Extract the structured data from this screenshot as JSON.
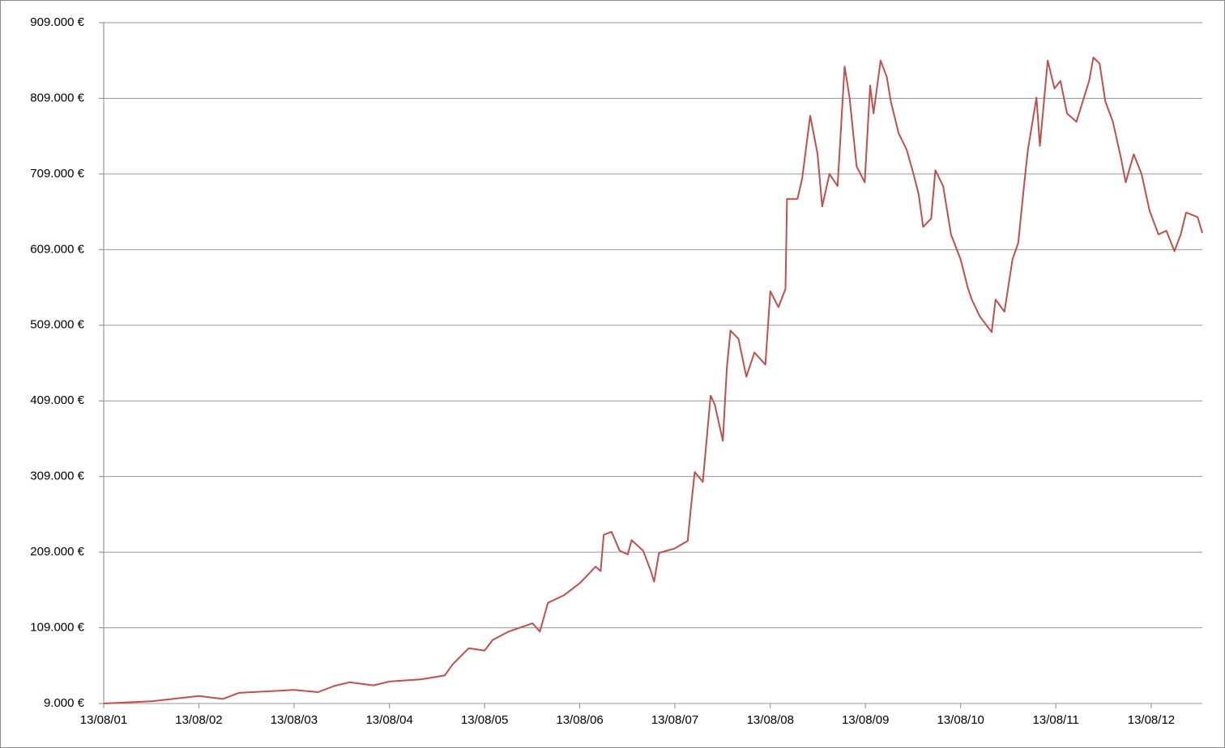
{
  "chart_data": {
    "type": "line",
    "x": [
      "2001-08-13",
      "2002-02-13",
      "2002-08-13",
      "2002-11-13",
      "2003-01-13",
      "2003-08-13",
      "2003-11-13",
      "2004-01-13",
      "2004-03-13",
      "2004-06-13",
      "2004-08-13",
      "2004-12-13",
      "2005-03-13",
      "2005-04-13",
      "2005-06-13",
      "2005-08-13",
      "2005-09-13",
      "2005-11-13",
      "2006-02-13",
      "2006-03-13",
      "2006-04-13",
      "2006-06-13",
      "2006-08-13",
      "2006-10-13",
      "2006-11-01",
      "2006-11-13",
      "2006-12-13",
      "2007-01-13",
      "2007-02-13",
      "2007-02-28",
      "2007-04-13",
      "2007-05-13",
      "2007-05-25",
      "2007-06-13",
      "2007-08-13",
      "2007-10-01",
      "2007-10-13",
      "2007-10-28",
      "2007-11-28",
      "2007-12-28",
      "2008-01-13",
      "2008-02-13",
      "2008-02-28",
      "2008-03-13",
      "2008-04-13",
      "2008-05-13",
      "2008-06-13",
      "2008-07-25",
      "2008-08-13",
      "2008-09-13",
      "2008-10-10",
      "2008-10-16",
      "2008-11-25",
      "2008-12-13",
      "2009-01-13",
      "2009-02-10",
      "2009-02-28",
      "2009-03-28",
      "2009-04-28",
      "2009-05-25",
      "2009-06-13",
      "2009-07-10",
      "2009-08-10",
      "2009-08-31",
      "2009-09-13",
      "2009-10-10",
      "2009-11-03",
      "2009-11-18",
      "2009-12-18",
      "2010-01-18",
      "2010-02-13",
      "2010-03-05",
      "2010-03-22",
      "2010-04-22",
      "2010-05-08",
      "2010-06-07",
      "2010-07-07",
      "2010-08-13",
      "2010-09-10",
      "2010-09-25",
      "2010-10-25",
      "2010-12-10",
      "2010-12-25",
      "2011-01-28",
      "2011-02-28",
      "2011-03-22",
      "2011-04-13",
      "2011-04-28",
      "2011-05-31",
      "2011-06-13",
      "2011-07-13",
      "2011-08-08",
      "2011-08-31",
      "2011-09-25",
      "2011-10-31",
      "2011-12-19",
      "2012-01-04",
      "2012-01-28",
      "2012-02-19",
      "2012-03-19",
      "2012-04-19",
      "2012-05-07",
      "2012-06-07",
      "2012-07-07",
      "2012-08-07",
      "2012-09-10",
      "2012-10-10",
      "2012-11-10",
      "2012-12-04",
      "2012-12-25",
      "2013-02-07",
      "2013-02-25"
    ],
    "series": [
      {
        "color": "#c0504d",
        "values": [
          9000,
          12000,
          19000,
          15000,
          23000,
          27000,
          24000,
          32000,
          37000,
          33000,
          38000,
          41000,
          46000,
          61000,
          82000,
          79000,
          93000,
          104000,
          115000,
          104000,
          142000,
          152000,
          168000,
          190000,
          184000,
          232000,
          236000,
          211000,
          206000,
          225000,
          211000,
          184000,
          170000,
          208000,
          214000,
          224000,
          267000,
          315000,
          302000,
          416000,
          404000,
          356000,
          452000,
          502000,
          491000,
          441000,
          473000,
          457000,
          554000,
          533000,
          557000,
          676000,
          676000,
          703000,
          786000,
          736000,
          666000,
          709000,
          693000,
          851000,
          810000,
          719000,
          698000,
          826000,
          789000,
          859000,
          837000,
          805000,
          763000,
          741000,
          709000,
          682000,
          639000,
          650000,
          714000,
          693000,
          629000,
          596000,
          558000,
          543000,
          521000,
          500000,
          543000,
          527000,
          596000,
          618000,
          693000,
          741000,
          810000,
          746000,
          859000,
          822000,
          832000,
          789000,
          778000,
          832000,
          863000,
          855000,
          805000,
          778000,
          730000,
          698000,
          735000,
          709000,
          660000,
          629000,
          634000,
          607000,
          629000,
          658000,
          652000,
          631000
        ]
      }
    ],
    "xlim": [
      "2001-08-13",
      "2013-02-25"
    ],
    "xticks": [
      {
        "value": "2001-08-13",
        "label": "13/08/01"
      },
      {
        "value": "2002-08-13",
        "label": "13/08/02"
      },
      {
        "value": "2003-08-13",
        "label": "13/08/03"
      },
      {
        "value": "2004-08-13",
        "label": "13/08/04"
      },
      {
        "value": "2005-08-13",
        "label": "13/08/05"
      },
      {
        "value": "2006-08-13",
        "label": "13/08/06"
      },
      {
        "value": "2007-08-13",
        "label": "13/08/07"
      },
      {
        "value": "2008-08-13",
        "label": "13/08/08"
      },
      {
        "value": "2009-08-13",
        "label": "13/08/09"
      },
      {
        "value": "2010-08-13",
        "label": "13/08/10"
      },
      {
        "value": "2011-08-13",
        "label": "13/08/11"
      },
      {
        "value": "2012-08-13",
        "label": "13/08/12"
      }
    ],
    "ylim": [
      9000,
      909000
    ],
    "yticks": [
      {
        "value": 9000,
        "label": "9.000 €"
      },
      {
        "value": 109000,
        "label": "109.000 €"
      },
      {
        "value": 209000,
        "label": "209.000 €"
      },
      {
        "value": 309000,
        "label": "309.000 €"
      },
      {
        "value": 409000,
        "label": "409.000 €"
      },
      {
        "value": 509000,
        "label": "509.000 €"
      },
      {
        "value": 609000,
        "label": "609.000 €"
      },
      {
        "value": 709000,
        "label": "709.000 €"
      },
      {
        "value": 809000,
        "label": "809.000 €"
      },
      {
        "value": 909000,
        "label": "909.000 €"
      }
    ],
    "grid": true
  }
}
